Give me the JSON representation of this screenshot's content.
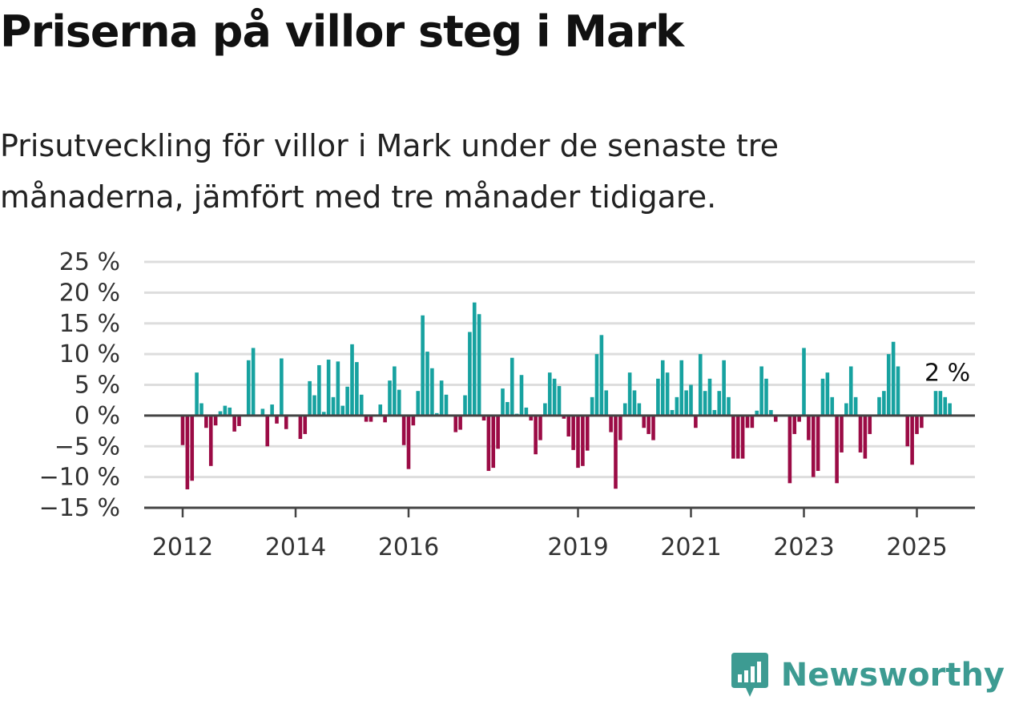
{
  "header": {
    "title": "Priserna på villor steg i Mark",
    "subtitle": "Prisutveckling för villor i Mark under de senaste tre månaderna, jämfört med tre månader tidigare."
  },
  "brand": {
    "name": "Newsworthy",
    "color": "#3d9b92"
  },
  "colors": {
    "positive": "#17a2a0",
    "negative": "#9b0b45",
    "grid": "#dddddd",
    "axis": "#444444"
  },
  "chart_data": {
    "type": "bar",
    "title": "",
    "xlabel": "",
    "ylabel": "",
    "ylim": [
      -15,
      25
    ],
    "yticks": [
      25,
      20,
      15,
      10,
      5,
      0,
      -5,
      -10,
      -15
    ],
    "ytick_labels": [
      "25 %",
      "20 %",
      "15 %",
      "10 %",
      "5 %",
      "0 %",
      "−5 %",
      "−10 %",
      "−15 %"
    ],
    "xticks": [
      2012,
      2014,
      2016,
      2019,
      2021,
      2023,
      2025
    ],
    "xtick_labels": [
      "2012",
      "2014",
      "2016",
      "2019",
      "2021",
      "2023",
      "2025"
    ],
    "x_start": "2012-01",
    "grid": true,
    "annotation": {
      "text": "2 %",
      "value": 2
    },
    "values": [
      -4.8,
      -12,
      -10.6,
      7,
      2,
      -2,
      -8.2,
      -1.6,
      0.7,
      1.6,
      1.3,
      -2.6,
      -1.7,
      0,
      9,
      11,
      0,
      1.1,
      -5,
      1.8,
      -1.3,
      9.3,
      -2.2,
      0,
      0,
      -3.8,
      -3,
      5.6,
      3.3,
      8.2,
      0.6,
      9.1,
      3,
      8.8,
      1.6,
      4.7,
      11.6,
      8.7,
      3.4,
      -1,
      -1,
      0,
      1.8,
      -1.1,
      5.7,
      8,
      4.2,
      -4.8,
      -8.7,
      -1.6,
      4,
      16.3,
      10.4,
      7.7,
      0.4,
      5.7,
      3.4,
      0,
      -2.7,
      -2.3,
      3.3,
      13.6,
      18.4,
      16.5,
      -0.8,
      -9,
      -8.5,
      -5.4,
      4.4,
      2.2,
      9.4,
      0.3,
      6.6,
      1.3,
      -0.8,
      -6.3,
      -4,
      2,
      7,
      6,
      4.8,
      -0.5,
      -3.4,
      -5.6,
      -8.5,
      -8.2,
      -5.7,
      3,
      10,
      13.1,
      4.1,
      -2.7,
      -11.9,
      -4,
      2,
      7,
      4.1,
      2,
      -2,
      -3,
      -4,
      6,
      9,
      7,
      0.9,
      3,
      9,
      4.1,
      5,
      -2,
      10,
      4,
      6,
      0.9,
      4,
      9,
      3,
      -7,
      -7,
      -7,
      -2,
      -2,
      0.8,
      8,
      6,
      0.9,
      -1,
      0,
      0,
      -11,
      -3,
      -1,
      11,
      -4,
      -10,
      -9,
      6,
      7,
      3,
      -11,
      -6,
      2,
      8,
      3,
      -6,
      -7,
      -3,
      0,
      3,
      4,
      10,
      12,
      8,
      0,
      -5,
      -8,
      -3,
      -2,
      0,
      0,
      4,
      4,
      3,
      2
    ]
  }
}
